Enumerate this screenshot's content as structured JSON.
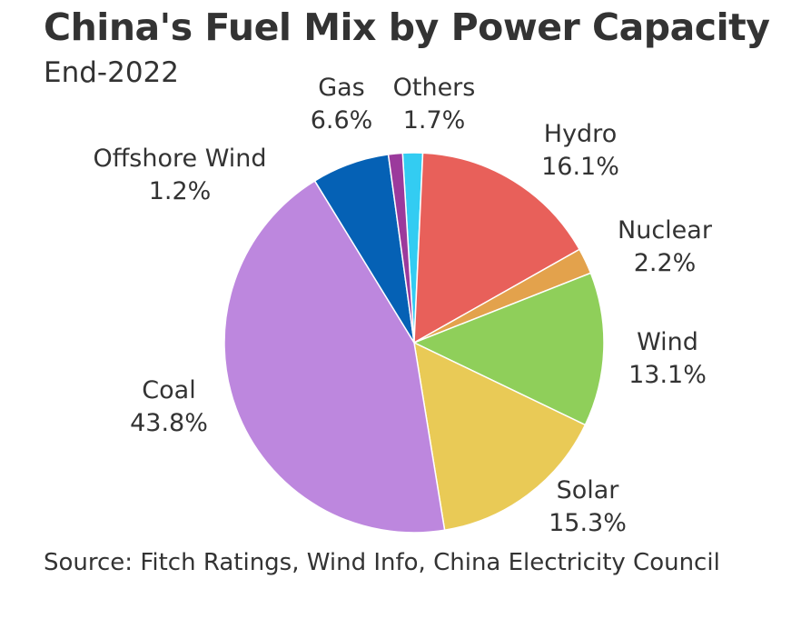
{
  "chart_data": {
    "type": "pie",
    "title": "China's Fuel Mix by Power Capacity",
    "subtitle": "End-2022",
    "source": "Source: Fitch Ratings, Wind Info, China Electricity Council",
    "slices": [
      {
        "label": "Others",
        "value_label": "1.7%",
        "value": 1.7,
        "color": "#33ccf2"
      },
      {
        "label": "Hydro",
        "value_label": "16.1%",
        "value": 16.1,
        "color": "#e8605a"
      },
      {
        "label": "Nuclear",
        "value_label": "2.2%",
        "value": 2.2,
        "color": "#e3a24c"
      },
      {
        "label": "Wind",
        "value_label": "13.1%",
        "value": 13.1,
        "color": "#8fcf5a"
      },
      {
        "label": "Solar",
        "value_label": "15.3%",
        "value": 15.3,
        "color": "#e9ca56"
      },
      {
        "label": "Coal",
        "value_label": "43.8%",
        "value": 43.8,
        "color": "#bd87de"
      },
      {
        "label": "Gas",
        "value_label": "6.6%",
        "value": 6.6,
        "color": "#0561b5"
      },
      {
        "label": "Offshore Wind",
        "value_label": "1.2%",
        "value": 1.2,
        "color": "#9b3a9c"
      }
    ]
  }
}
